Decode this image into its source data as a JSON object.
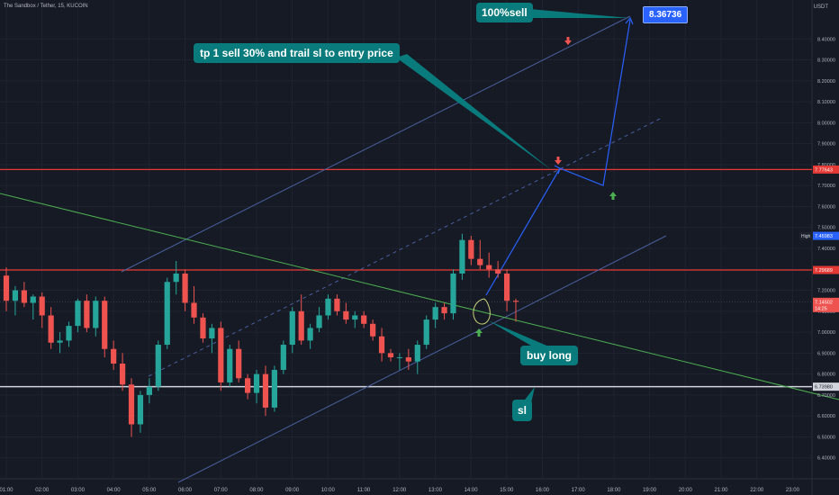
{
  "header": {
    "title": "The Sandbox / Tether, 15, KUCOIN",
    "currency": "USDT"
  },
  "colors": {
    "background": "#161a25",
    "grid": "#1f2330",
    "up": "#26a69a",
    "down": "#ef5350",
    "callout": "#0a7b7c",
    "target": "#2962ff",
    "channel": "#4a5f9c",
    "trendline": "#4caf50",
    "resistance": "#e53935",
    "sl_line": "#d1d4dc"
  },
  "annotations": {
    "sell_all": "100%sell",
    "tp1": "tp 1 sell 30% and trail sl to entry price",
    "buy": "buy long",
    "sl": "sl",
    "target": "8.36736"
  },
  "chart_data": {
    "type": "candlestick",
    "ylim": [
      6.3,
      8.5
    ],
    "x_ticks": [
      "01:00",
      "02:00",
      "03:00",
      "04:00",
      "05:00",
      "06:00",
      "07:00",
      "08:00",
      "09:00",
      "10:00",
      "11:00",
      "12:00",
      "13:00",
      "14:00",
      "15:00",
      "16:00",
      "17:00",
      "18:00",
      "19:00",
      "20:00",
      "21:00",
      "22:00",
      "23:00"
    ],
    "y_ticks": [
      "6.40000",
      "6.50000",
      "6.60000",
      "6.70000",
      "6.80000",
      "6.90000",
      "7.00000",
      "7.10000",
      "7.20000",
      "7.30000",
      "7.40000",
      "7.50000",
      "7.60000",
      "7.70000",
      "7.80000",
      "7.90000",
      "8.00000",
      "8.10000",
      "8.20000",
      "8.30000",
      "8.40000"
    ],
    "candles": [
      {
        "o": 7.27,
        "h": 7.31,
        "l": 7.1,
        "c": 7.15
      },
      {
        "o": 7.15,
        "h": 7.22,
        "l": 7.08,
        "c": 7.2
      },
      {
        "o": 7.2,
        "h": 7.24,
        "l": 7.12,
        "c": 7.14
      },
      {
        "o": 7.14,
        "h": 7.18,
        "l": 7.06,
        "c": 7.17
      },
      {
        "o": 7.17,
        "h": 7.19,
        "l": 7.02,
        "c": 7.08
      },
      {
        "o": 7.08,
        "h": 7.12,
        "l": 6.92,
        "c": 6.95
      },
      {
        "o": 6.95,
        "h": 7.0,
        "l": 6.9,
        "c": 6.96
      },
      {
        "o": 6.96,
        "h": 7.05,
        "l": 6.93,
        "c": 7.03
      },
      {
        "o": 7.03,
        "h": 7.16,
        "l": 7.0,
        "c": 7.15
      },
      {
        "o": 7.15,
        "h": 7.18,
        "l": 7.0,
        "c": 7.02
      },
      {
        "o": 7.02,
        "h": 7.17,
        "l": 6.98,
        "c": 7.15
      },
      {
        "o": 7.15,
        "h": 7.17,
        "l": 6.88,
        "c": 6.92
      },
      {
        "o": 6.92,
        "h": 6.96,
        "l": 6.82,
        "c": 6.85
      },
      {
        "o": 6.85,
        "h": 6.9,
        "l": 6.72,
        "c": 6.75
      },
      {
        "o": 6.75,
        "h": 6.78,
        "l": 6.5,
        "c": 6.56
      },
      {
        "o": 6.56,
        "h": 6.72,
        "l": 6.52,
        "c": 6.7
      },
      {
        "o": 6.7,
        "h": 6.78,
        "l": 6.66,
        "c": 6.74
      },
      {
        "o": 6.74,
        "h": 6.96,
        "l": 6.72,
        "c": 6.94
      },
      {
        "o": 6.94,
        "h": 7.26,
        "l": 6.92,
        "c": 7.24
      },
      {
        "o": 7.24,
        "h": 7.34,
        "l": 7.18,
        "c": 7.28
      },
      {
        "o": 7.28,
        "h": 7.3,
        "l": 7.1,
        "c": 7.14
      },
      {
        "o": 7.14,
        "h": 7.22,
        "l": 7.04,
        "c": 7.07
      },
      {
        "o": 7.07,
        "h": 7.09,
        "l": 6.95,
        "c": 6.97
      },
      {
        "o": 6.97,
        "h": 7.04,
        "l": 6.9,
        "c": 7.02
      },
      {
        "o": 7.02,
        "h": 7.05,
        "l": 6.72,
        "c": 6.76
      },
      {
        "o": 6.76,
        "h": 6.94,
        "l": 6.74,
        "c": 6.92
      },
      {
        "o": 6.92,
        "h": 6.96,
        "l": 6.76,
        "c": 6.78
      },
      {
        "o": 6.78,
        "h": 6.8,
        "l": 6.68,
        "c": 6.71
      },
      {
        "o": 6.71,
        "h": 6.82,
        "l": 6.66,
        "c": 6.8
      },
      {
        "o": 6.8,
        "h": 6.84,
        "l": 6.6,
        "c": 6.64
      },
      {
        "o": 6.64,
        "h": 6.84,
        "l": 6.62,
        "c": 6.82
      },
      {
        "o": 6.82,
        "h": 6.96,
        "l": 6.8,
        "c": 6.94
      },
      {
        "o": 6.94,
        "h": 7.12,
        "l": 6.9,
        "c": 7.1
      },
      {
        "o": 7.1,
        "h": 7.18,
        "l": 6.94,
        "c": 6.96
      },
      {
        "o": 6.96,
        "h": 7.04,
        "l": 6.92,
        "c": 7.02
      },
      {
        "o": 7.02,
        "h": 7.12,
        "l": 7.0,
        "c": 7.08
      },
      {
        "o": 7.08,
        "h": 7.18,
        "l": 7.06,
        "c": 7.16
      },
      {
        "o": 7.16,
        "h": 7.18,
        "l": 7.08,
        "c": 7.1
      },
      {
        "o": 7.1,
        "h": 7.14,
        "l": 7.04,
        "c": 7.06
      },
      {
        "o": 7.06,
        "h": 7.1,
        "l": 7.02,
        "c": 7.08
      },
      {
        "o": 7.08,
        "h": 7.1,
        "l": 7.02,
        "c": 7.04
      },
      {
        "o": 7.04,
        "h": 7.06,
        "l": 6.96,
        "c": 6.98
      },
      {
        "o": 6.98,
        "h": 7.02,
        "l": 6.86,
        "c": 6.9
      },
      {
        "o": 6.9,
        "h": 6.92,
        "l": 6.86,
        "c": 6.88
      },
      {
        "o": 6.88,
        "h": 6.9,
        "l": 6.82,
        "c": 6.88
      },
      {
        "o": 6.88,
        "h": 6.92,
        "l": 6.82,
        "c": 6.86
      },
      {
        "o": 6.86,
        "h": 6.96,
        "l": 6.8,
        "c": 6.94
      },
      {
        "o": 6.94,
        "h": 7.08,
        "l": 6.92,
        "c": 7.06
      },
      {
        "o": 7.06,
        "h": 7.14,
        "l": 7.02,
        "c": 7.12
      },
      {
        "o": 7.12,
        "h": 7.14,
        "l": 7.06,
        "c": 7.09
      },
      {
        "o": 7.09,
        "h": 7.3,
        "l": 7.06,
        "c": 7.28
      },
      {
        "o": 7.28,
        "h": 7.47,
        "l": 7.25,
        "c": 7.44
      },
      {
        "o": 7.44,
        "h": 7.46,
        "l": 7.32,
        "c": 7.35
      },
      {
        "o": 7.35,
        "h": 7.44,
        "l": 7.3,
        "c": 7.32
      },
      {
        "o": 7.32,
        "h": 7.38,
        "l": 7.26,
        "c": 7.3
      },
      {
        "o": 7.3,
        "h": 7.34,
        "l": 7.26,
        "c": 7.28
      },
      {
        "o": 7.28,
        "h": 7.3,
        "l": 7.1,
        "c": 7.15
      },
      {
        "o": 7.15,
        "h": 7.16,
        "l": 7.05,
        "c": 7.145
      }
    ],
    "price_labels": [
      {
        "label": "7.77643",
        "value": 7.77643,
        "color": "#e53935"
      },
      {
        "label": "7.45983",
        "value": 7.45983,
        "color": "#2962ff",
        "tag": "High"
      },
      {
        "label": "7.29689",
        "value": 7.29689,
        "color": "#e53935"
      },
      {
        "label": "7.14502",
        "value": 7.14502,
        "color": "#ef5350",
        "sub": "14:25"
      },
      {
        "label": "6.73980",
        "value": 6.7398,
        "color": "#d1d4dc"
      }
    ],
    "lines": [
      {
        "name": "resistance-upper",
        "value": 7.77643
      },
      {
        "name": "resistance-lower",
        "value": 7.29689
      },
      {
        "name": "stop-loss",
        "value": 6.7398
      }
    ],
    "projection_path": [
      7.145,
      7.72,
      7.65,
      8.37
    ]
  }
}
